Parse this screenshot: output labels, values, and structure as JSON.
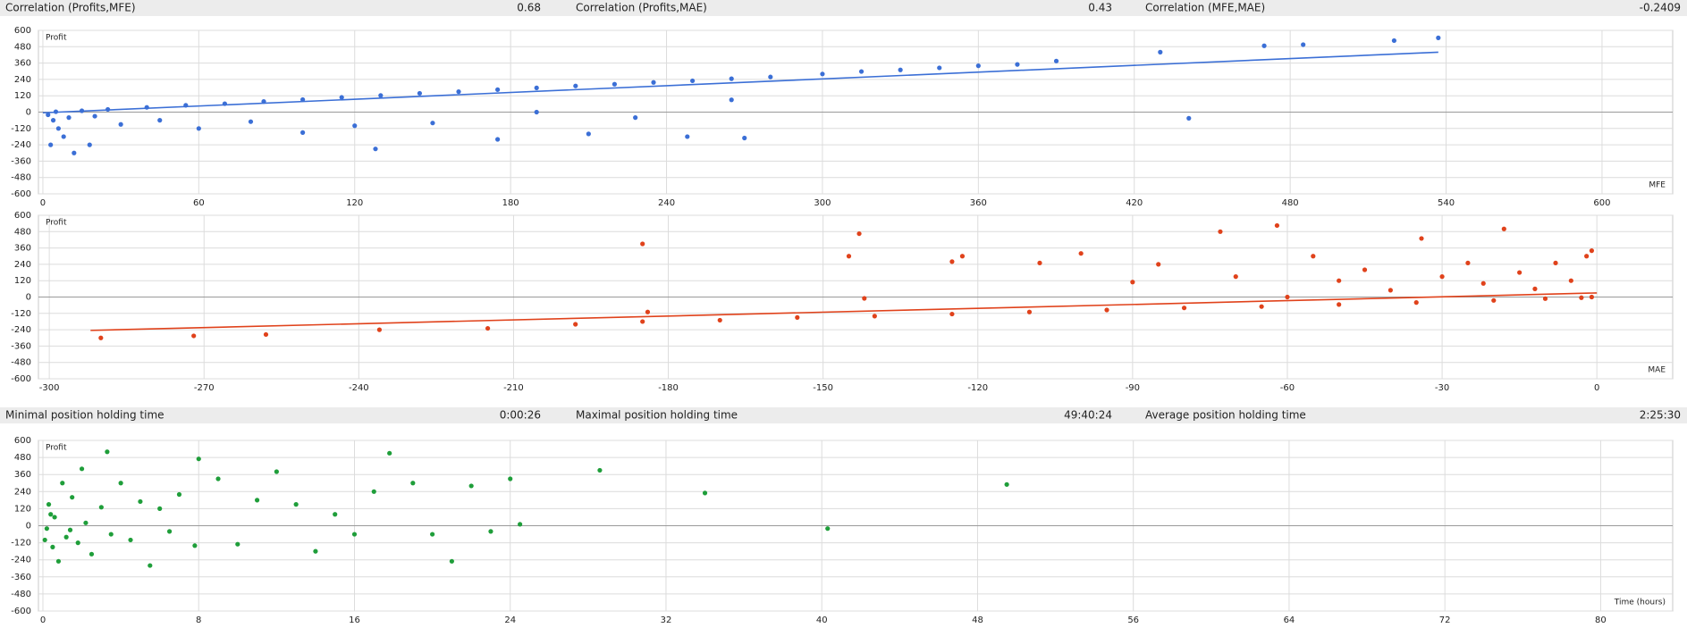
{
  "stats_top": [
    {
      "label": "Correlation (Profits,MFE)",
      "value": "0.68"
    },
    {
      "label": "Correlation (Profits,MAE)",
      "value": "0.43"
    },
    {
      "label": "Correlation (MFE,MAE)",
      "value": "-0.2409"
    }
  ],
  "stats_bottom": [
    {
      "label": "Minimal position holding time",
      "value": "0:00:26"
    },
    {
      "label": "Maximal position holding time",
      "value": "49:40:24"
    },
    {
      "label": "Average position holding time",
      "value": "2:25:30"
    }
  ],
  "chart_data": [
    {
      "type": "scatter",
      "y_label": "Profit",
      "x_label": "MFE",
      "xlim": [
        -1.7,
        627.2
      ],
      "ylim": [
        -600,
        600
      ],
      "xticks": [
        0,
        60,
        120,
        180,
        240,
        300,
        360,
        420,
        480,
        540,
        600
      ],
      "yticks": [
        -600,
        -480,
        -360,
        -240,
        -120,
        0,
        120,
        240,
        360,
        480,
        600
      ],
      "grid": true,
      "series": [
        {
          "color": "#3b6fd6",
          "x": [
            5,
            15,
            25,
            40,
            55,
            70,
            85,
            100,
            115,
            130,
            145,
            160,
            175,
            190,
            205,
            220,
            235,
            250,
            265,
            280,
            300,
            315,
            330,
            345,
            360,
            375,
            390,
            430,
            470,
            485,
            520,
            537,
            2,
            4,
            6,
            8,
            3,
            10,
            20,
            30,
            45,
            60,
            80,
            100,
            120,
            128,
            150,
            175,
            190,
            210,
            228,
            248,
            265,
            270,
            441,
            18,
            12
          ],
          "y": [
            3,
            10,
            20,
            35,
            50,
            62,
            78,
            92,
            108,
            122,
            138,
            150,
            165,
            178,
            192,
            205,
            218,
            230,
            245,
            258,
            280,
            298,
            310,
            325,
            340,
            350,
            375,
            440,
            487,
            495,
            525,
            545,
            -20,
            -60,
            -120,
            -180,
            -240,
            -40,
            -30,
            -90,
            -60,
            -120,
            -70,
            -150,
            -100,
            -270,
            -80,
            -200,
            0,
            -160,
            -40,
            -180,
            90,
            -190,
            -45,
            -240,
            -300
          ]
        }
      ],
      "trend": {
        "color": "#3b6fd6",
        "x": [
          0,
          537
        ],
        "y": [
          -5,
          440
        ]
      }
    },
    {
      "type": "scatter",
      "y_label": "Profit",
      "x_label": "MAE",
      "xlim": [
        -302.1,
        14.7
      ],
      "ylim": [
        -600,
        600
      ],
      "xticks": [
        -300,
        -270,
        -240,
        -210,
        -180,
        -150,
        -120,
        -90,
        -60,
        -30,
        0
      ],
      "yticks": [
        -600,
        -480,
        -360,
        -240,
        -120,
        0,
        120,
        240,
        360,
        480,
        600
      ],
      "grid": true,
      "series": [
        {
          "color": "#e0421b",
          "x": [
            -290,
            -272,
            -258,
            -236,
            -215,
            -198,
            -185,
            -170,
            -155,
            -140,
            -125,
            -110,
            -95,
            -80,
            -65,
            -50,
            -35,
            -20,
            -10,
            -3,
            -1,
            -185,
            -184,
            -145,
            -143,
            -142,
            -125,
            -123,
            -108,
            -100,
            -85,
            -73,
            -62,
            -55,
            -45,
            -34,
            -30,
            -25,
            -18,
            -15,
            -8,
            -5,
            -2,
            -1,
            -90,
            -70,
            -40,
            -60,
            -12,
            -22,
            -50
          ],
          "y": [
            -300,
            -285,
            -275,
            -240,
            -230,
            -200,
            -180,
            -170,
            -150,
            -140,
            -125,
            -110,
            -95,
            -80,
            -70,
            -55,
            -40,
            -25,
            -12,
            -5,
            0,
            390,
            -110,
            300,
            465,
            -10,
            260,
            300,
            250,
            320,
            240,
            480,
            525,
            300,
            200,
            430,
            150,
            250,
            500,
            180,
            250,
            120,
            300,
            340,
            110,
            150,
            50,
            0,
            60,
            100,
            120
          ]
        }
      ],
      "trend": {
        "color": "#e0421b",
        "x": [
          -292,
          0
        ],
        "y": [
          -245,
          30
        ]
      }
    },
    {
      "type": "scatter",
      "y_label": "Profit",
      "x_label": "Time (hours)",
      "xlim": [
        -0.23,
        83.7
      ],
      "ylim": [
        -600,
        600
      ],
      "xticks": [
        0,
        8,
        16,
        24,
        32,
        40,
        48,
        56,
        64,
        72,
        80
      ],
      "yticks": [
        -600,
        -480,
        -360,
        -240,
        -120,
        0,
        120,
        240,
        360,
        480,
        600
      ],
      "grid": true,
      "series": [
        {
          "color": "#1f9e3a",
          "x": [
            0.2,
            0.3,
            0.5,
            0.6,
            0.8,
            1,
            1.2,
            1.5,
            1.8,
            2,
            2.2,
            2.5,
            3,
            3.3,
            3.5,
            4,
            4.5,
            5,
            5.5,
            6,
            6.5,
            7,
            7.8,
            8,
            9,
            10,
            11,
            12,
            13,
            14,
            15,
            16,
            17,
            17.8,
            19,
            20,
            21,
            22,
            23,
            24,
            24.5,
            28.6,
            34,
            40.3,
            49.5,
            0.1,
            0.4,
            1.4
          ],
          "y": [
            -20,
            150,
            -150,
            60,
            -250,
            300,
            -80,
            200,
            -120,
            400,
            20,
            -200,
            130,
            520,
            -60,
            300,
            -100,
            170,
            -280,
            120,
            -40,
            220,
            -140,
            470,
            330,
            -130,
            180,
            380,
            150,
            -180,
            80,
            -60,
            240,
            510,
            300,
            -60,
            -250,
            280,
            -40,
            330,
            10,
            390,
            230,
            -20,
            290,
            -100,
            80,
            -30
          ]
        }
      ]
    }
  ]
}
